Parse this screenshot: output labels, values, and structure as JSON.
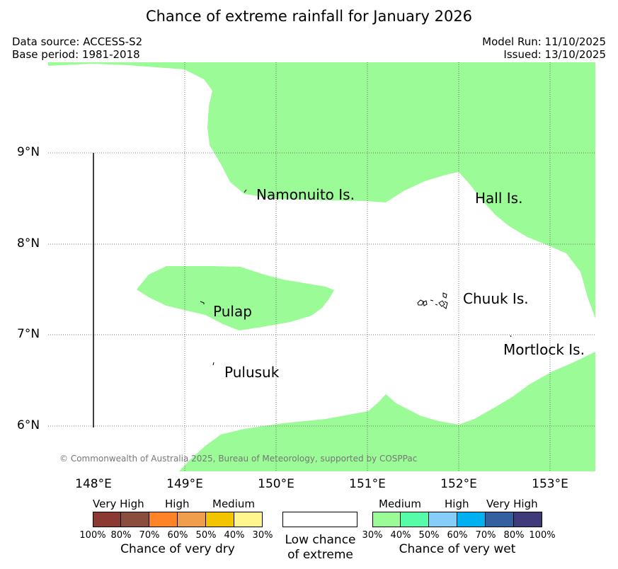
{
  "title": "Chance of extreme rainfall for January 2026",
  "meta": {
    "data_source": "Data source: ACCESS-S2",
    "base_period": "Base period: 1981-2018",
    "model_run": "Model Run: 11/10/2025",
    "issued": "Issued: 13/10/2025"
  },
  "map": {
    "lat_labels": [
      "9°N",
      "8°N",
      "7°N",
      "6°N"
    ],
    "lon_labels": [
      "148°E",
      "149°E",
      "150°E",
      "151°E",
      "152°E",
      "153°E"
    ],
    "islands": {
      "namonuito": "Namonuito Is.",
      "hall": "Hall Is.",
      "pulap": "Pulap",
      "chuuk": "Chuuk Is.",
      "mortlock": "Mortlock Is.",
      "pulusuk": "Pulusuk"
    },
    "copyright": "© Commonwealth of Australia 2025, Bureau of Meteorology, supported by COSPPac",
    "wet_region_color": "#9bfb96"
  },
  "legend": {
    "dry": {
      "categories": [
        "Very High",
        "High",
        "Medium"
      ],
      "colors": [
        "#8b3a33",
        "#8b4e3e",
        "#ff8427",
        "#f09e4b",
        "#f2c500",
        "#fff68f"
      ],
      "ticks": [
        "100%",
        "80%",
        "70%",
        "60%",
        "50%",
        "40%",
        "30%"
      ],
      "title": "Chance of very dry"
    },
    "low": {
      "line1": "Low chance",
      "line2": "of extreme"
    },
    "wet": {
      "categories": [
        "Medium",
        "High",
        "Very High"
      ],
      "colors": [
        "#9bfb96",
        "#57fca8",
        "#86cef9",
        "#00b0f0",
        "#3560a0",
        "#3f3a7a"
      ],
      "ticks": [
        "30%",
        "40%",
        "50%",
        "60%",
        "70%",
        "80%",
        "100%"
      ],
      "title": "Chance of very wet"
    }
  }
}
